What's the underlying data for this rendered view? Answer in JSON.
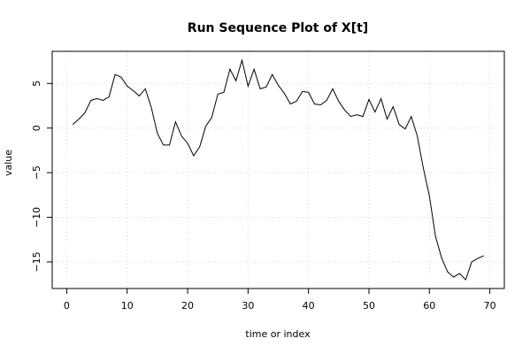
{
  "chart_data": {
    "type": "line",
    "title": "Run Sequence Plot of X[t]",
    "xlabel": "time or index",
    "ylabel": "value",
    "xlim": [
      -2.4,
      72.4
    ],
    "ylim": [
      -17.98,
      8.6
    ],
    "x_ticks": [
      0,
      10,
      20,
      30,
      40,
      50,
      60,
      70
    ],
    "y_ticks": [
      -15,
      -10,
      -5,
      0,
      5
    ],
    "grid": true,
    "colors": {
      "line": "#000000",
      "grid": "#d3d3d3",
      "frame": "#000000"
    },
    "series": [
      {
        "x": [
          1,
          2,
          3,
          4,
          5,
          6,
          7,
          8,
          9,
          10,
          11,
          12,
          13,
          14,
          15,
          16,
          17,
          18,
          19,
          20,
          21,
          22,
          23,
          24,
          25,
          26,
          27,
          28,
          29,
          30,
          31,
          32,
          33,
          34,
          35,
          36,
          37,
          38,
          39,
          40,
          41,
          42,
          43,
          44,
          45,
          46,
          47,
          48,
          49,
          50,
          51,
          52,
          53,
          54,
          55,
          56,
          57,
          58,
          59,
          60,
          61,
          62,
          63,
          64,
          65,
          66,
          67,
          68,
          69
        ],
        "values": [
          0.4,
          1.0,
          1.7,
          3.1,
          3.3,
          3.1,
          3.5,
          6.0,
          5.7,
          4.7,
          4.2,
          3.6,
          4.4,
          2.3,
          -0.6,
          -1.9,
          -1.9,
          0.7,
          -0.9,
          -1.7,
          -3.1,
          -2.1,
          0.2,
          1.2,
          3.8,
          4.0,
          6.6,
          5.3,
          7.6,
          4.7,
          6.6,
          4.4,
          4.6,
          6.0,
          4.8,
          3.9,
          2.7,
          3.0,
          4.1,
          4.0,
          2.7,
          2.6,
          3.1,
          4.4,
          3.0,
          2.0,
          1.3,
          1.5,
          1.3,
          3.2,
          1.8,
          3.3,
          1.0,
          2.4,
          0.4,
          -0.1,
          1.3,
          -0.9,
          -4.5,
          -7.6,
          -12.1,
          -14.5,
          -16.1,
          -16.7,
          -16.3,
          -17.0,
          -15.0,
          -14.6,
          -14.3
        ]
      }
    ]
  }
}
